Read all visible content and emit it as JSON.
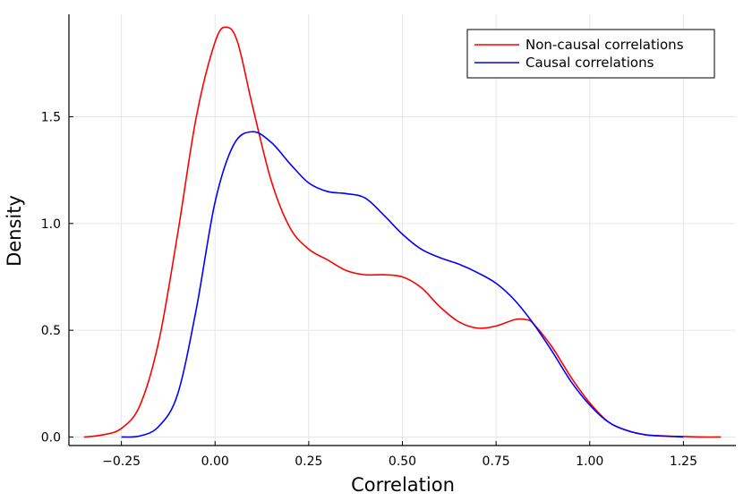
{
  "chart_data": {
    "type": "line",
    "xlabel": "Correlation",
    "ylabel": "Density",
    "xlim": [
      -0.39,
      1.39
    ],
    "ylim": [
      -0.04,
      1.98
    ],
    "x_ticks": [
      -0.25,
      0.0,
      0.25,
      0.5,
      0.75,
      1.0,
      1.25
    ],
    "x_tick_labels": [
      "−0.25",
      "0.00",
      "0.25",
      "0.50",
      "0.75",
      "1.00",
      "1.25"
    ],
    "y_ticks": [
      0.0,
      0.5,
      1.0,
      1.5
    ],
    "y_tick_labels": [
      "0.0",
      "0.5",
      "1.0",
      "1.5"
    ],
    "grid": true,
    "legend_position": "top-right",
    "series": [
      {
        "name": "Non-causal correlations",
        "color": "#ff0000",
        "x": [
          -0.35,
          -0.3,
          -0.25,
          -0.2,
          -0.15,
          -0.1,
          -0.05,
          0.0,
          0.03,
          0.06,
          0.1,
          0.15,
          0.2,
          0.25,
          0.3,
          0.35,
          0.4,
          0.45,
          0.5,
          0.55,
          0.6,
          0.65,
          0.7,
          0.75,
          0.8,
          0.83,
          0.85,
          0.9,
          0.95,
          1.0,
          1.05,
          1.1,
          1.15,
          1.2,
          1.25,
          1.3,
          1.35
        ],
        "y": [
          0.0,
          0.01,
          0.04,
          0.15,
          0.45,
          0.95,
          1.5,
          1.85,
          1.92,
          1.85,
          1.55,
          1.2,
          0.98,
          0.88,
          0.83,
          0.78,
          0.76,
          0.76,
          0.75,
          0.7,
          0.61,
          0.54,
          0.51,
          0.52,
          0.55,
          0.55,
          0.53,
          0.42,
          0.28,
          0.16,
          0.07,
          0.03,
          0.01,
          0.005,
          0.002,
          0.0,
          0.0
        ]
      },
      {
        "name": "Causal correlations",
        "color": "#0000ff",
        "x": [
          -0.25,
          -0.2,
          -0.15,
          -0.1,
          -0.05,
          0.0,
          0.05,
          0.1,
          0.15,
          0.2,
          0.25,
          0.3,
          0.35,
          0.4,
          0.45,
          0.5,
          0.55,
          0.6,
          0.65,
          0.7,
          0.75,
          0.8,
          0.85,
          0.9,
          0.95,
          1.0,
          1.05,
          1.1,
          1.15,
          1.2,
          1.25
        ],
        "y": [
          0.0,
          0.005,
          0.05,
          0.2,
          0.6,
          1.1,
          1.37,
          1.43,
          1.38,
          1.28,
          1.19,
          1.15,
          1.14,
          1.12,
          1.04,
          0.95,
          0.88,
          0.84,
          0.81,
          0.77,
          0.72,
          0.64,
          0.53,
          0.4,
          0.26,
          0.15,
          0.07,
          0.03,
          0.01,
          0.004,
          0.0
        ]
      }
    ]
  }
}
